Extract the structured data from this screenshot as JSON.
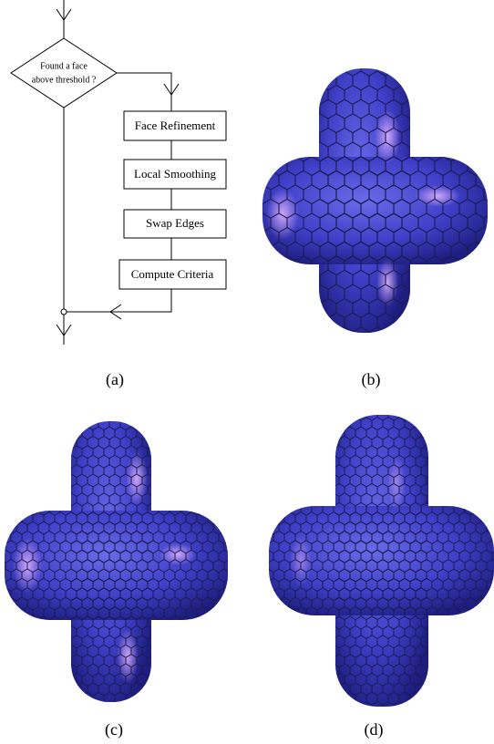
{
  "flowchart": {
    "decision": [
      "Found a face",
      "above threshold ?"
    ],
    "steps": [
      "Face Refinement",
      "Local Smoothing",
      "Swap Edges",
      "Compute Criteria"
    ]
  },
  "captions": [
    "(a)",
    "(b)",
    "(c)",
    "(d)"
  ]
}
